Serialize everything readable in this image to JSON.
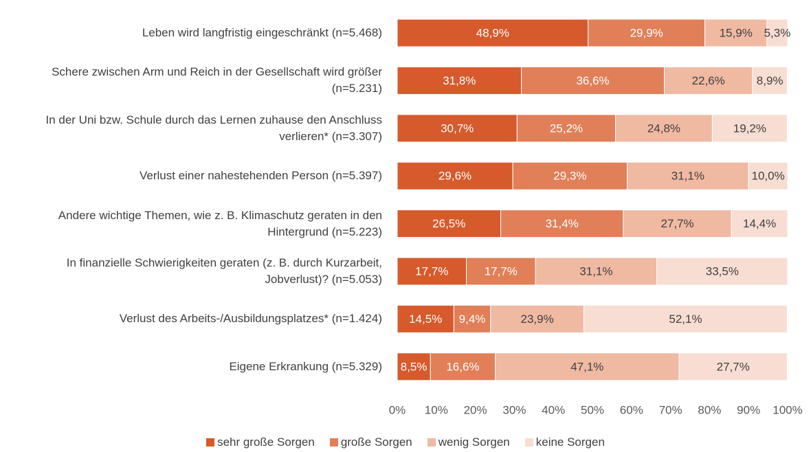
{
  "chart_data": {
    "type": "stacked-bar-horizontal",
    "categories": [
      "Leben wird langfristig eingeschränkt (n=5.468)",
      "Schere zwischen Arm und Reich in der Gesellschaft wird größer  (n=5.231)",
      "In der Uni bzw. Schule durch das Lernen zuhause den Anschluss verlieren* (n=3.307)",
      "Verlust einer nahestehenden Person (n=5.397)",
      "Andere wichtige Themen, wie z. B. Klimaschutz geraten in den Hintergrund (n=5.223)",
      "In finanzielle Schwierigkeiten geraten (z. B. durch Kurzarbeit, Jobverlust)? (n=5.053)",
      "Verlust des Arbeits-/Ausbildungsplatzes* (n=1.424)",
      "Eigene Erkrankung (n=5.329)"
    ],
    "series": [
      {
        "name": "sehr große Sorgen",
        "color": "#d65a2c",
        "values": [
          48.9,
          31.8,
          30.7,
          29.6,
          26.5,
          17.7,
          14.5,
          8.5
        ],
        "value_labels": [
          "48,9%",
          "31,8%",
          "30,7%",
          "29,6%",
          "26,5%",
          "17,7%",
          "14,5%",
          "8,5%"
        ]
      },
      {
        "name": "große Sorgen",
        "color": "#e07f58",
        "values": [
          29.9,
          36.6,
          25.2,
          29.3,
          31.4,
          17.7,
          9.4,
          16.6
        ],
        "value_labels": [
          "29,9%",
          "36,6%",
          "25,2%",
          "29,3%",
          "31,4%",
          "17,7%",
          "9,4%",
          "16,6%"
        ]
      },
      {
        "name": "wenig Sorgen",
        "color": "#f0b9a2",
        "values": [
          15.9,
          22.6,
          24.8,
          31.1,
          27.7,
          31.1,
          23.9,
          47.1
        ],
        "value_labels": [
          "15,9%",
          "22,6%",
          "24,8%",
          "31,1%",
          "27,7%",
          "31,1%",
          "23,9%",
          "47,1%"
        ]
      },
      {
        "name": "keine Sorgen",
        "color": "#f8ddd2",
        "values": [
          5.3,
          8.9,
          19.2,
          10.0,
          14.4,
          33.5,
          52.1,
          27.7
        ],
        "value_labels": [
          "5,3%",
          "8,9%",
          "19,2%",
          "10,0%",
          "14,4%",
          "33,5%",
          "52,1%",
          "27,7%"
        ]
      }
    ],
    "xlim": [
      0,
      100
    ],
    "xticks": [
      {
        "value": 0,
        "label": "0%"
      },
      {
        "value": 10,
        "label": "10%"
      },
      {
        "value": 20,
        "label": "20%"
      },
      {
        "value": 30,
        "label": "30%"
      },
      {
        "value": 40,
        "label": "40%"
      },
      {
        "value": 50,
        "label": "50%"
      },
      {
        "value": 60,
        "label": "60%"
      },
      {
        "value": 70,
        "label": "70%"
      },
      {
        "value": 80,
        "label": "80%"
      },
      {
        "value": 90,
        "label": "90%"
      },
      {
        "value": 100,
        "label": "100%"
      }
    ],
    "legend": "bottom"
  }
}
